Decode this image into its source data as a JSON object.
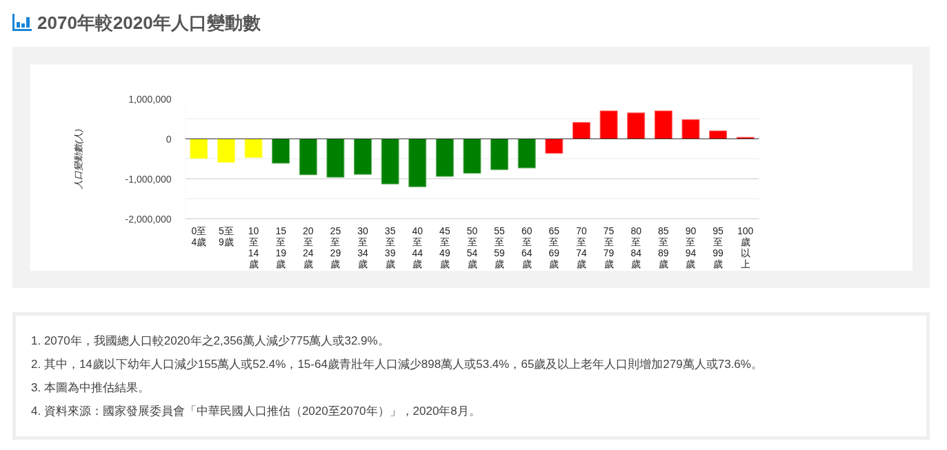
{
  "chart_data": {
    "type": "bar",
    "title": "2070年較2020年人口變動數",
    "ylabel": "人口變動數(人)",
    "categories": [
      "0至4歲",
      "5至9歲",
      "10至14歲",
      "15至19歲",
      "20至24歲",
      "25至29歲",
      "30至34歲",
      "35至39歲",
      "40至44歲",
      "45至49歲",
      "50至54歲",
      "55至59歲",
      "60至64歲",
      "65至69歲",
      "70至74歲",
      "75至79歲",
      "80至84歲",
      "85至89歲",
      "90至94歲",
      "95至99歲",
      "100歲以上"
    ],
    "values": [
      -490000,
      -590000,
      -470000,
      -610000,
      -900000,
      -960000,
      -890000,
      -1130000,
      -1200000,
      -940000,
      -860000,
      -770000,
      -730000,
      -360000,
      410000,
      700000,
      650000,
      700000,
      480000,
      200000,
      40000
    ],
    "colors": [
      "#ffff00",
      "#ffff00",
      "#ffff00",
      "#008000",
      "#008000",
      "#008000",
      "#008000",
      "#008000",
      "#008000",
      "#008000",
      "#008000",
      "#008000",
      "#008000",
      "#ff0000",
      "#ff0000",
      "#ff0000",
      "#ff0000",
      "#ff0000",
      "#ff0000",
      "#ff0000",
      "#ff0000"
    ],
    "ylim": [
      -2000000,
      1000000
    ],
    "yticks": [
      {
        "value": 1000000,
        "label": "1,000,000"
      },
      {
        "value": 500000,
        "label": null
      },
      {
        "value": 0,
        "label": "0"
      },
      {
        "value": -500000,
        "label": null
      },
      {
        "value": -1000000,
        "label": "-1,000,000"
      },
      {
        "value": -1500000,
        "label": null
      },
      {
        "value": -2000000,
        "label": "-2,000,000"
      }
    ],
    "grid": "y",
    "annotations": [
      "1. 2070年，我國總人口較2020年之2,356萬人減少775萬人或32.9%。",
      "2. 其中，14歲以下幼年人口減少155萬人或52.4%，15-64歲青壯年人口減少898萬人或53.4%，65歲及以上老年人口則增加279萬人或73.6%。",
      "3. 本圖為中推估結果。",
      "4. 資料來源：國家發展委員會「中華民國人口推估（2020至2070年）」，2020年8月。"
    ]
  }
}
